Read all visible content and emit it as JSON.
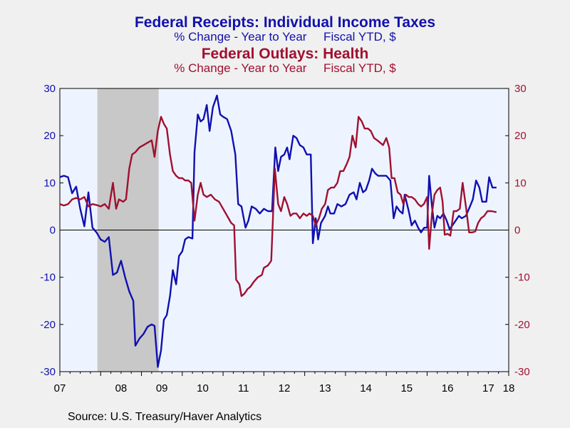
{
  "titles": {
    "series1_title": "Federal Receipts: Individual Income Taxes",
    "series1_subtitle": "% Change - Year to Year     Fiscal YTD, $",
    "series2_title": "Federal Outlays: Health",
    "series2_subtitle": "% Change - Year to Year     Fiscal YTD, $"
  },
  "source": "Source:  U.S. Treasury/Haver Analytics",
  "colors": {
    "series1": "#1010b0",
    "series2": "#a01030",
    "plot_bg": "#eef4ff",
    "recession": "#c8c8c8",
    "left_axis": "#1010b0",
    "right_axis": "#a01030"
  },
  "chart_data": {
    "type": "line",
    "x_range": [
      2007.0,
      2018.0
    ],
    "ylim": [
      -30,
      30
    ],
    "y_ticks": [
      30,
      20,
      10,
      0,
      -10,
      -20,
      -30
    ],
    "x_tick_labels": [
      "07",
      "08",
      "09",
      "10",
      "11",
      "12",
      "13",
      "14",
      "15",
      "16",
      "17",
      "18"
    ],
    "recession_shading": [
      2007.92,
      2009.42
    ],
    "grid": false,
    "series": [
      {
        "name": "Federal Receipts: Individual Income Taxes",
        "axis": "left",
        "points": [
          [
            2007.0,
            11.2
          ],
          [
            2007.1,
            11.5
          ],
          [
            2007.2,
            11.2
          ],
          [
            2007.3,
            7.8
          ],
          [
            2007.4,
            9.2
          ],
          [
            2007.5,
            4.5
          ],
          [
            2007.6,
            0.8
          ],
          [
            2007.7,
            8.0
          ],
          [
            2007.8,
            0.5
          ],
          [
            2007.9,
            -0.5
          ],
          [
            2008.0,
            -2.0
          ],
          [
            2008.1,
            -2.5
          ],
          [
            2008.2,
            -1.5
          ],
          [
            2008.3,
            -9.5
          ],
          [
            2008.4,
            -9.0
          ],
          [
            2008.5,
            -6.5
          ],
          [
            2008.6,
            -10.0
          ],
          [
            2008.7,
            -13.0
          ],
          [
            2008.8,
            -15.0
          ],
          [
            2008.85,
            -24.5
          ],
          [
            2008.95,
            -23.0
          ],
          [
            2009.05,
            -22.0
          ],
          [
            2009.15,
            -20.5
          ],
          [
            2009.25,
            -20.0
          ],
          [
            2009.32,
            -20.3
          ],
          [
            2009.4,
            -29.0
          ],
          [
            2009.48,
            -25.5
          ],
          [
            2009.55,
            -19.0
          ],
          [
            2009.62,
            -18.0
          ],
          [
            2009.7,
            -14.0
          ],
          [
            2009.77,
            -8.5
          ],
          [
            2009.85,
            -11.5
          ],
          [
            2009.92,
            -5.5
          ],
          [
            2010.0,
            -4.5
          ],
          [
            2010.07,
            -2.0
          ],
          [
            2010.15,
            -1.5
          ],
          [
            2010.25,
            -1.8
          ],
          [
            2010.3,
            16.5
          ],
          [
            2010.38,
            24.5
          ],
          [
            2010.45,
            23.0
          ],
          [
            2010.52,
            23.5
          ],
          [
            2010.6,
            26.5
          ],
          [
            2010.67,
            21.0
          ],
          [
            2010.75,
            26.0
          ],
          [
            2010.85,
            28.5
          ],
          [
            2010.93,
            24.5
          ],
          [
            2011.0,
            24.0
          ],
          [
            2011.1,
            23.5
          ],
          [
            2011.2,
            21.0
          ],
          [
            2011.3,
            16.0
          ],
          [
            2011.37,
            5.5
          ],
          [
            2011.45,
            5.0
          ],
          [
            2011.55,
            0.5
          ],
          [
            2011.62,
            2.0
          ],
          [
            2011.7,
            5.0
          ],
          [
            2011.8,
            4.5
          ],
          [
            2011.9,
            3.5
          ],
          [
            2012.0,
            4.5
          ],
          [
            2012.1,
            4.0
          ],
          [
            2012.2,
            4.0
          ],
          [
            2012.28,
            17.5
          ],
          [
            2012.35,
            12.5
          ],
          [
            2012.42,
            15.5
          ],
          [
            2012.5,
            16.0
          ],
          [
            2012.57,
            17.5
          ],
          [
            2012.63,
            15.0
          ],
          [
            2012.72,
            20.0
          ],
          [
            2012.8,
            19.5
          ],
          [
            2012.88,
            18.0
          ],
          [
            2012.97,
            17.5
          ],
          [
            2013.05,
            16.0
          ],
          [
            2013.15,
            16.0
          ],
          [
            2013.2,
            -2.8
          ],
          [
            2013.27,
            2.5
          ],
          [
            2013.33,
            -2.0
          ],
          [
            2013.4,
            1.5
          ],
          [
            2013.5,
            3.0
          ],
          [
            2013.57,
            5.0
          ],
          [
            2013.63,
            3.5
          ],
          [
            2013.72,
            3.5
          ],
          [
            2013.8,
            5.5
          ],
          [
            2013.9,
            5.0
          ],
          [
            2014.0,
            5.5
          ],
          [
            2014.1,
            7.5
          ],
          [
            2014.2,
            8.0
          ],
          [
            2014.27,
            6.5
          ],
          [
            2014.35,
            10.0
          ],
          [
            2014.43,
            8.0
          ],
          [
            2014.5,
            8.5
          ],
          [
            2014.58,
            10.5
          ],
          [
            2014.65,
            13.0
          ],
          [
            2014.73,
            12.0
          ],
          [
            2014.8,
            11.5
          ],
          [
            2014.9,
            11.5
          ],
          [
            2015.0,
            11.5
          ],
          [
            2015.1,
            10.5
          ],
          [
            2015.18,
            2.5
          ],
          [
            2015.25,
            5.0
          ],
          [
            2015.33,
            4.0
          ],
          [
            2015.4,
            3.5
          ],
          [
            2015.45,
            7.5
          ],
          [
            2015.55,
            4.0
          ],
          [
            2015.62,
            1.0
          ],
          [
            2015.7,
            2.0
          ],
          [
            2015.78,
            0.5
          ],
          [
            2015.85,
            -0.5
          ],
          [
            2015.93,
            0.5
          ],
          [
            2016.0,
            0.5
          ],
          [
            2016.05,
            11.5
          ],
          [
            2016.12,
            5.0
          ],
          [
            2016.18,
            0.5
          ],
          [
            2016.25,
            3.0
          ],
          [
            2016.32,
            2.5
          ],
          [
            2016.4,
            3.5
          ],
          [
            2016.48,
            2.0
          ],
          [
            2016.55,
            0.2
          ],
          [
            2016.62,
            1.0
          ],
          [
            2016.7,
            2.0
          ],
          [
            2016.78,
            3.0
          ],
          [
            2016.85,
            2.5
          ],
          [
            2016.95,
            3.0
          ],
          [
            2017.05,
            5.0
          ],
          [
            2017.12,
            6.5
          ],
          [
            2017.2,
            10.5
          ],
          [
            2017.28,
            9.0
          ],
          [
            2017.35,
            6.0
          ],
          [
            2017.45,
            6.0
          ],
          [
            2017.52,
            11.2
          ],
          [
            2017.6,
            9.0
          ],
          [
            2017.7,
            9.0
          ]
        ]
      },
      {
        "name": "Federal Outlays: Health",
        "axis": "right",
        "points": [
          [
            2007.0,
            5.5
          ],
          [
            2007.1,
            5.2
          ],
          [
            2007.2,
            5.5
          ],
          [
            2007.3,
            6.5
          ],
          [
            2007.4,
            6.8
          ],
          [
            2007.5,
            6.5
          ],
          [
            2007.6,
            7.0
          ],
          [
            2007.7,
            5.0
          ],
          [
            2007.8,
            5.5
          ],
          [
            2007.9,
            5.3
          ],
          [
            2008.0,
            5.0
          ],
          [
            2008.1,
            5.5
          ],
          [
            2008.2,
            4.5
          ],
          [
            2008.3,
            10.0
          ],
          [
            2008.38,
            4.5
          ],
          [
            2008.45,
            6.5
          ],
          [
            2008.55,
            6.0
          ],
          [
            2008.62,
            6.5
          ],
          [
            2008.7,
            13.0
          ],
          [
            2008.77,
            16.0
          ],
          [
            2008.85,
            16.5
          ],
          [
            2008.95,
            17.5
          ],
          [
            2009.05,
            18.0
          ],
          [
            2009.15,
            18.5
          ],
          [
            2009.25,
            19.0
          ],
          [
            2009.32,
            15.5
          ],
          [
            2009.4,
            21.0
          ],
          [
            2009.48,
            24.0
          ],
          [
            2009.55,
            22.5
          ],
          [
            2009.62,
            21.5
          ],
          [
            2009.7,
            16.0
          ],
          [
            2009.77,
            12.5
          ],
          [
            2009.85,
            11.5
          ],
          [
            2009.92,
            11.0
          ],
          [
            2010.0,
            11.0
          ],
          [
            2010.07,
            10.5
          ],
          [
            2010.15,
            10.5
          ],
          [
            2010.22,
            10.0
          ],
          [
            2010.3,
            2.0
          ],
          [
            2010.38,
            7.5
          ],
          [
            2010.45,
            10.0
          ],
          [
            2010.52,
            7.5
          ],
          [
            2010.6,
            7.0
          ],
          [
            2010.7,
            7.5
          ],
          [
            2010.8,
            6.5
          ],
          [
            2010.9,
            6.0
          ],
          [
            2011.0,
            4.5
          ],
          [
            2011.1,
            3.0
          ],
          [
            2011.2,
            1.5
          ],
          [
            2011.27,
            1.0
          ],
          [
            2011.32,
            -10.5
          ],
          [
            2011.4,
            -11.5
          ],
          [
            2011.45,
            -14.0
          ],
          [
            2011.52,
            -13.5
          ],
          [
            2011.6,
            -12.5
          ],
          [
            2011.67,
            -12.0
          ],
          [
            2011.75,
            -11.0
          ],
          [
            2011.85,
            -10.0
          ],
          [
            2011.95,
            -9.5
          ],
          [
            2012.0,
            -8.0
          ],
          [
            2012.1,
            -7.5
          ],
          [
            2012.18,
            -6.5
          ],
          [
            2012.27,
            13.0
          ],
          [
            2012.35,
            5.5
          ],
          [
            2012.42,
            4.0
          ],
          [
            2012.5,
            7.0
          ],
          [
            2012.57,
            5.5
          ],
          [
            2012.65,
            3.0
          ],
          [
            2012.72,
            3.5
          ],
          [
            2012.8,
            3.5
          ],
          [
            2012.88,
            2.5
          ],
          [
            2012.97,
            3.5
          ],
          [
            2013.05,
            3.0
          ],
          [
            2013.12,
            3.5
          ],
          [
            2013.2,
            3.0
          ],
          [
            2013.27,
            1.0
          ],
          [
            2013.35,
            2.5
          ],
          [
            2013.42,
            4.5
          ],
          [
            2013.5,
            5.5
          ],
          [
            2013.57,
            8.5
          ],
          [
            2013.65,
            9.0
          ],
          [
            2013.72,
            9.0
          ],
          [
            2013.8,
            10.0
          ],
          [
            2013.87,
            12.5
          ],
          [
            2013.95,
            12.5
          ],
          [
            2014.03,
            14.0
          ],
          [
            2014.1,
            15.5
          ],
          [
            2014.17,
            20.0
          ],
          [
            2014.25,
            17.5
          ],
          [
            2014.32,
            24.0
          ],
          [
            2014.4,
            23.0
          ],
          [
            2014.47,
            21.5
          ],
          [
            2014.55,
            21.5
          ],
          [
            2014.62,
            21.0
          ],
          [
            2014.7,
            19.5
          ],
          [
            2014.78,
            19.0
          ],
          [
            2014.85,
            18.5
          ],
          [
            2014.92,
            18.0
          ],
          [
            2015.0,
            19.5
          ],
          [
            2015.07,
            17.5
          ],
          [
            2015.13,
            11.0
          ],
          [
            2015.2,
            11.0
          ],
          [
            2015.28,
            8.0
          ],
          [
            2015.35,
            7.5
          ],
          [
            2015.42,
            5.5
          ],
          [
            2015.48,
            7.5
          ],
          [
            2015.55,
            7.0
          ],
          [
            2015.62,
            7.0
          ],
          [
            2015.7,
            6.5
          ],
          [
            2015.78,
            5.5
          ],
          [
            2015.85,
            5.0
          ],
          [
            2015.92,
            5.5
          ],
          [
            2016.0,
            7.0
          ],
          [
            2016.05,
            -4.0
          ],
          [
            2016.12,
            3.5
          ],
          [
            2016.18,
            7.5
          ],
          [
            2016.25,
            8.5
          ],
          [
            2016.32,
            9.0
          ],
          [
            2016.38,
            6.0
          ],
          [
            2016.43,
            -1.0
          ],
          [
            2016.5,
            -0.8
          ],
          [
            2016.57,
            -1.2
          ],
          [
            2016.65,
            4.0
          ],
          [
            2016.72,
            4.0
          ],
          [
            2016.8,
            4.5
          ],
          [
            2016.87,
            10.0
          ],
          [
            2016.95,
            5.0
          ],
          [
            2017.03,
            -0.5
          ],
          [
            2017.1,
            -0.5
          ],
          [
            2017.18,
            -0.3
          ],
          [
            2017.25,
            1.5
          ],
          [
            2017.32,
            2.5
          ],
          [
            2017.4,
            3.0
          ],
          [
            2017.48,
            4.0
          ],
          [
            2017.58,
            4.0
          ],
          [
            2017.7,
            3.8
          ]
        ]
      }
    ]
  }
}
